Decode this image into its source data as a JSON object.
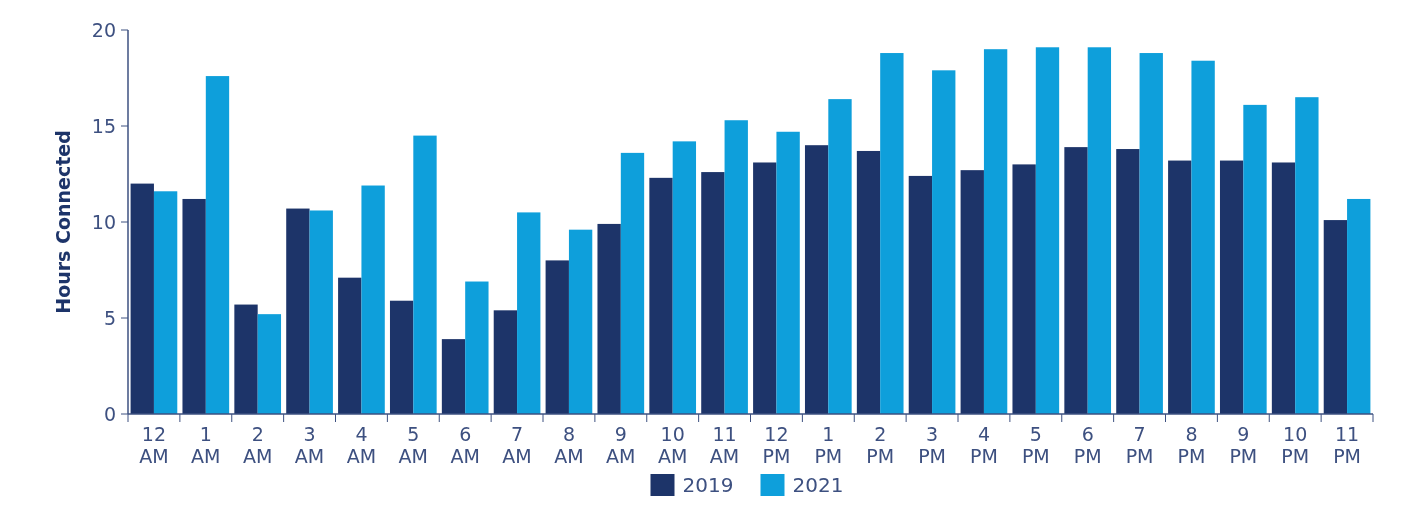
{
  "chart_data": {
    "type": "bar",
    "ylabel": "Hours Connected",
    "categories": [
      "12 AM",
      "1 AM",
      "2 AM",
      "3 AM",
      "4 AM",
      "5 AM",
      "6 AM",
      "7 AM",
      "8 AM",
      "9 AM",
      "10 AM",
      "11 AM",
      "12 PM",
      "1 PM",
      "2 PM",
      "3 PM",
      "4 PM",
      "5 PM",
      "6 PM",
      "7 PM",
      "8 PM",
      "9 PM",
      "10 PM",
      "11 PM"
    ],
    "series": [
      {
        "name": "2019",
        "color": "#1d3469",
        "values": [
          12.0,
          11.2,
          5.7,
          10.7,
          7.1,
          5.9,
          3.9,
          5.4,
          8.0,
          9.9,
          12.3,
          12.6,
          13.1,
          14.0,
          13.7,
          12.4,
          12.7,
          13.0,
          13.9,
          13.8,
          13.2,
          13.2,
          13.1,
          10.1
        ]
      },
      {
        "name": "2021",
        "color": "#0e9fdb",
        "values": [
          11.6,
          17.6,
          5.2,
          10.6,
          11.9,
          14.5,
          6.9,
          10.5,
          9.6,
          13.6,
          14.2,
          15.3,
          14.7,
          16.4,
          18.8,
          17.9,
          19.0,
          19.1,
          19.1,
          18.8,
          18.4,
          16.1,
          16.5,
          11.2
        ]
      }
    ],
    "ylim": [
      0,
      20
    ],
    "yticks": [
      0,
      5,
      10,
      15,
      20
    ],
    "grid": false,
    "legend": "bottom"
  }
}
